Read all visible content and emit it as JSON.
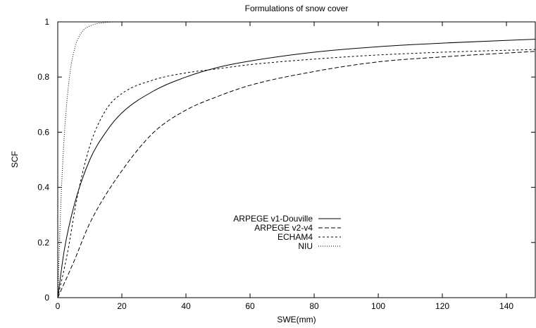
{
  "chart_data": {
    "type": "line",
    "title": "Formulations of snow cover",
    "xlabel": "SWE(mm)",
    "ylabel": "SCF",
    "xlim": [
      0,
      149
    ],
    "ylim": [
      0,
      1
    ],
    "xticks": [
      0,
      20,
      40,
      60,
      80,
      100,
      120,
      140
    ],
    "xtick_labels": [
      "0",
      "20",
      "40",
      "60",
      "80",
      "100",
      "120",
      "140"
    ],
    "yticks": [
      0,
      0.2,
      0.4,
      0.6,
      0.8,
      1
    ],
    "ytick_labels": [
      "0",
      "0.2",
      "0.4",
      "0.6",
      "0.8",
      "1"
    ],
    "grid": false,
    "legend_position": "center-left",
    "series": [
      {
        "name": "ARPEGE v1-Douville",
        "style": "solid",
        "x": [
          0,
          2,
          5,
          10,
          15,
          20,
          30,
          40,
          50,
          60,
          80,
          100,
          120,
          149
        ],
        "y": [
          0,
          0.17,
          0.33,
          0.5,
          0.6,
          0.67,
          0.75,
          0.8,
          0.835,
          0.858,
          0.89,
          0.91,
          0.923,
          0.937
        ]
      },
      {
        "name": "ARPEGE v2-v4",
        "style": "dashed",
        "x": [
          0,
          5,
          10,
          20,
          30,
          40,
          50,
          60,
          80,
          100,
          120,
          149
        ],
        "y": [
          0,
          0.13,
          0.27,
          0.46,
          0.6,
          0.68,
          0.73,
          0.77,
          0.82,
          0.855,
          0.873,
          0.893
        ]
      },
      {
        "name": "ECHAM4",
        "style": "short-dashed",
        "x": [
          0,
          3,
          6,
          10,
          15,
          20,
          30,
          40,
          50,
          60,
          80,
          100,
          120,
          149
        ],
        "y": [
          0,
          0.16,
          0.36,
          0.55,
          0.68,
          0.74,
          0.79,
          0.815,
          0.83,
          0.845,
          0.865,
          0.88,
          0.89,
          0.9
        ]
      },
      {
        "name": "NIU",
        "style": "dotted",
        "x": [
          0,
          1,
          2,
          3,
          4,
          5,
          6,
          8,
          10,
          12,
          15,
          18,
          20
        ],
        "y": [
          0,
          0.35,
          0.58,
          0.73,
          0.83,
          0.89,
          0.93,
          0.97,
          0.985,
          0.993,
          0.998,
          1,
          1
        ]
      }
    ]
  }
}
